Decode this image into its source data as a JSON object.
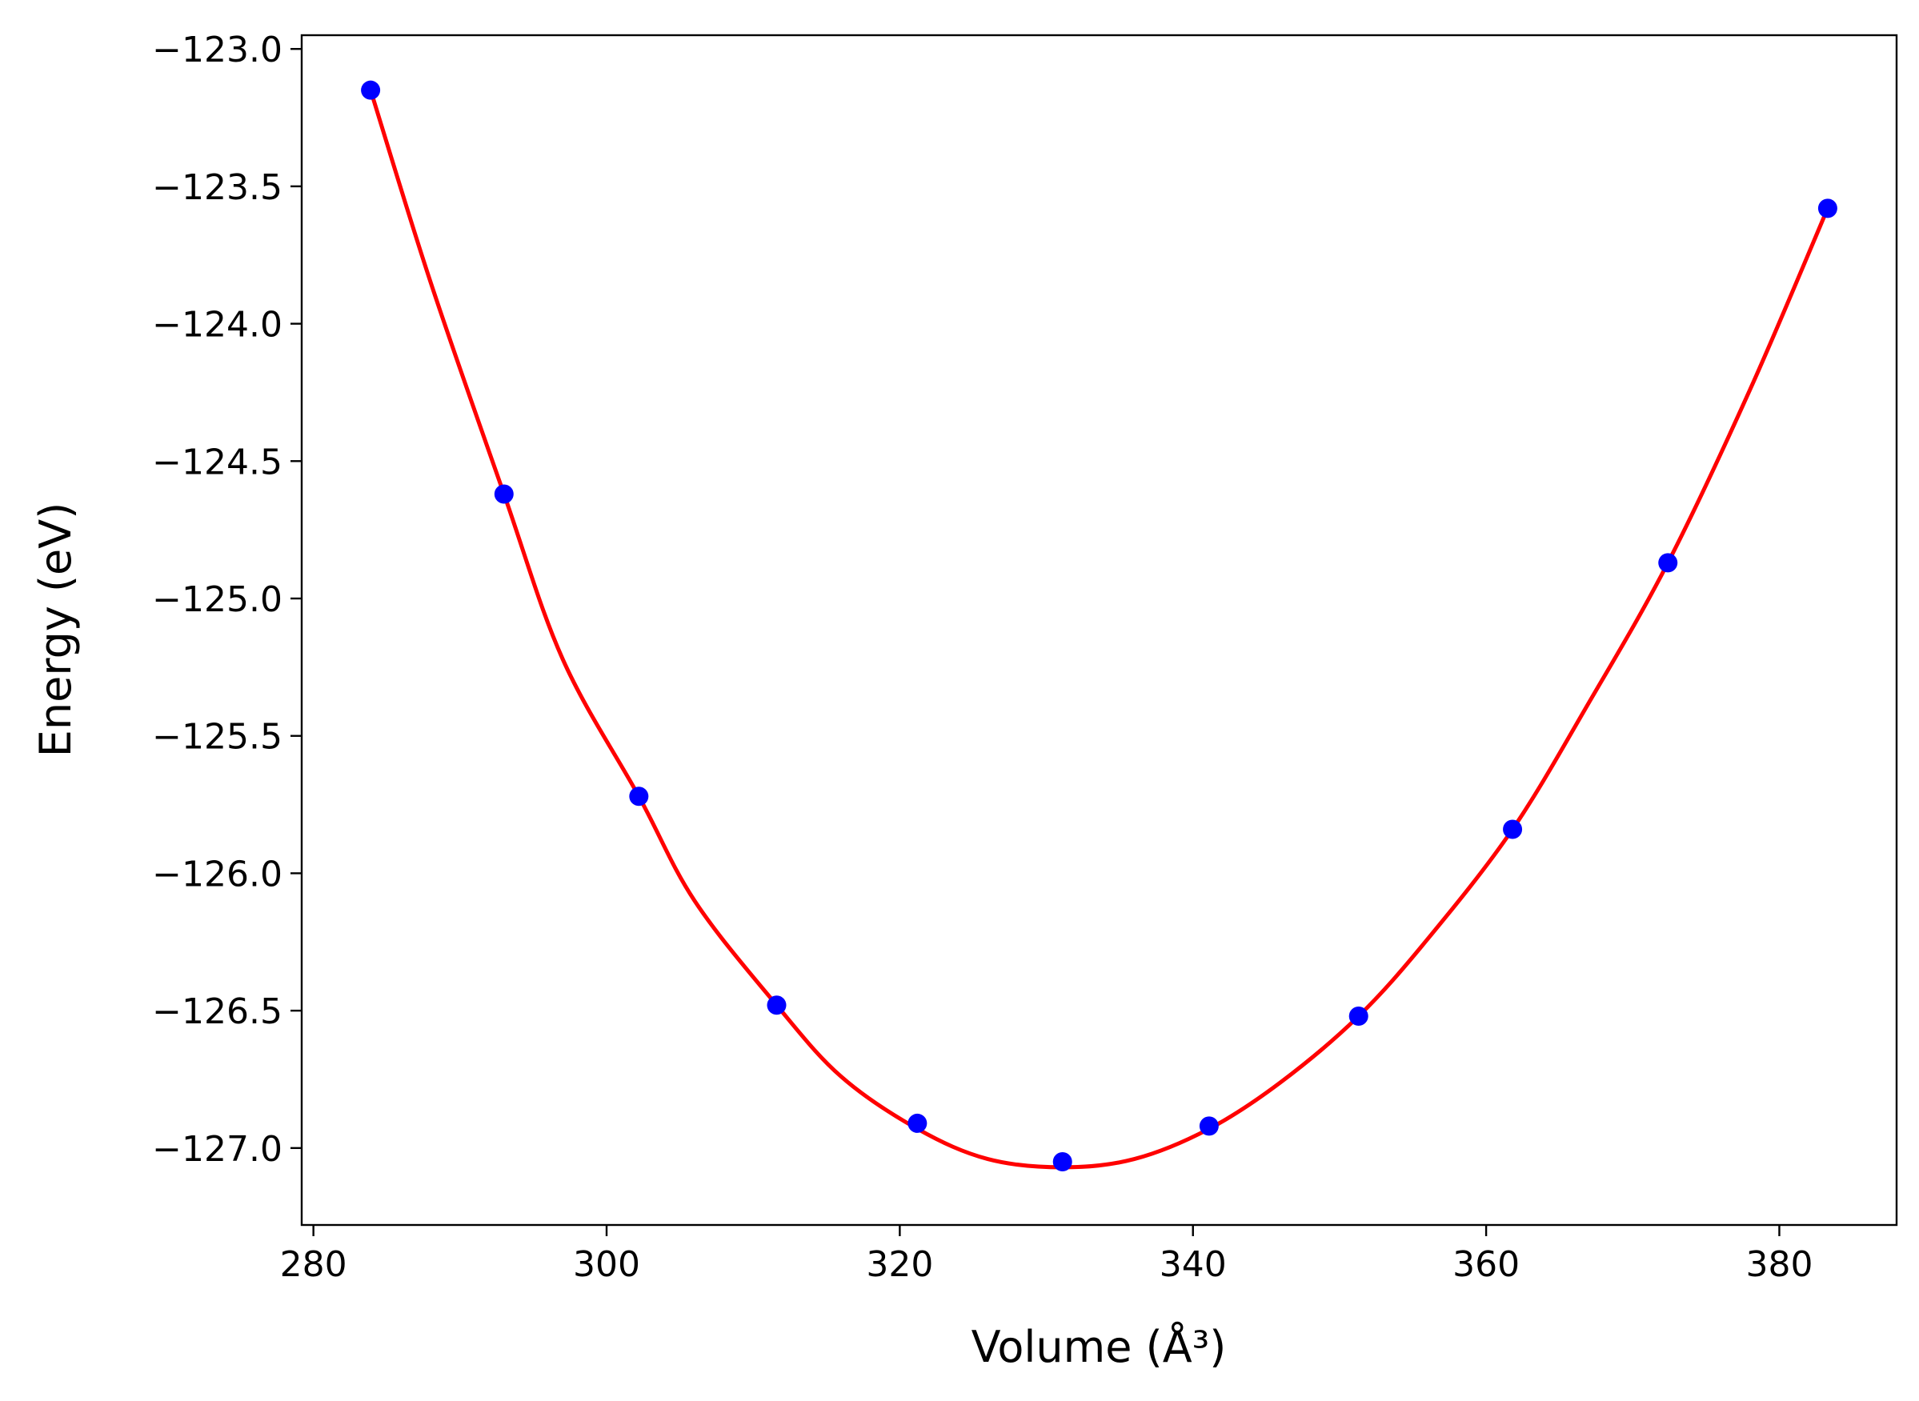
{
  "chart_data": {
    "type": "scatter",
    "xlabel": "Volume (Å³)",
    "ylabel": "Energy (eV)",
    "xlim": [
      279.2,
      388.0
    ],
    "ylim": [
      -127.28,
      -122.95
    ],
    "xticks": [
      280,
      300,
      320,
      340,
      360,
      380
    ],
    "yticks": [
      -123.0,
      -123.5,
      -124.0,
      -124.5,
      -125.0,
      -125.5,
      -126.0,
      -126.5,
      -127.0
    ],
    "xtick_labels": [
      "280",
      "300",
      "320",
      "340",
      "360",
      "380"
    ],
    "ytick_labels": [
      "−123.0",
      "−123.5",
      "−124.0",
      "−124.5",
      "−125.0",
      "−125.5",
      "−126.0",
      "−126.5",
      "−127.0"
    ],
    "grid": false,
    "series": [
      {
        "kind": "points",
        "color": "#0000ff",
        "x": [
          283.9,
          293.0,
          302.2,
          311.6,
          321.2,
          331.1,
          341.1,
          351.3,
          361.8,
          372.4,
          383.3
        ],
        "y": [
          -123.15,
          -124.62,
          -125.72,
          -126.48,
          -126.91,
          -127.05,
          -126.92,
          -126.52,
          -125.84,
          -124.87,
          -123.58
        ]
      },
      {
        "kind": "fit-curve",
        "color": "#ff0000",
        "x": [
          283.9,
          288.0,
          293.0,
          297.0,
          302.2,
          306.0,
          311.6,
          316.0,
          321.2,
          326.0,
          331.1,
          336.0,
          341.1,
          346.0,
          351.3,
          356.0,
          361.8,
          367.0,
          372.4,
          378.0,
          383.3
        ],
        "y": [
          -123.15,
          -123.85,
          -124.62,
          -125.22,
          -125.72,
          -126.1,
          -126.48,
          -126.74,
          -126.93,
          -127.04,
          -127.07,
          -127.04,
          -126.93,
          -126.76,
          -126.52,
          -126.24,
          -125.84,
          -125.38,
          -124.87,
          -124.24,
          -123.58
        ]
      }
    ]
  }
}
